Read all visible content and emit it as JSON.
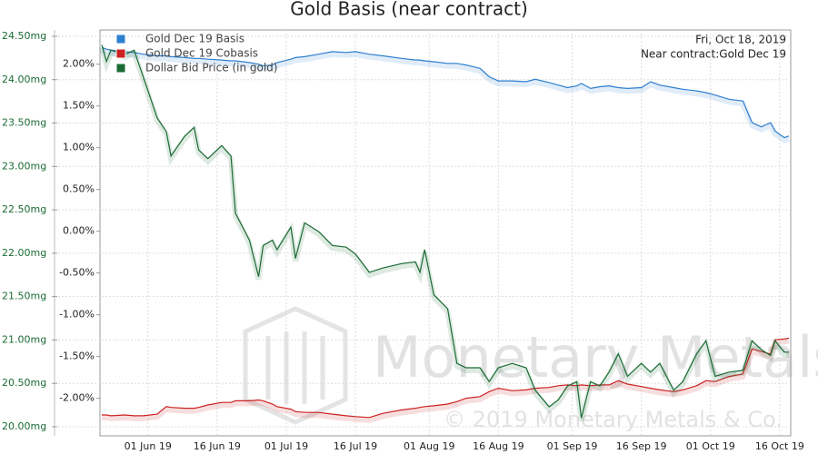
{
  "chart_data": {
    "type": "line",
    "title": "Gold Basis (near contract)",
    "annotations": [
      "Fri, Oct 18, 2019",
      "Near contract:Gold Dec 19"
    ],
    "watermark": [
      "Monetary Metals",
      "© 2019 Monetary Metals & Co."
    ],
    "legend": "upper left",
    "grid": true,
    "x": [
      "2019-05-22",
      "2019-05-23",
      "2019-05-24",
      "2019-05-27",
      "2019-05-29",
      "2019-05-31",
      "2019-06-03",
      "2019-06-05",
      "2019-06-06",
      "2019-06-09",
      "2019-06-11",
      "2019-06-12",
      "2019-06-14",
      "2019-06-17",
      "2019-06-19",
      "2019-06-20",
      "2019-06-23",
      "2019-06-25",
      "2019-06-26",
      "2019-06-28",
      "2019-06-29",
      "2019-07-02",
      "2019-07-03",
      "2019-07-05",
      "2019-07-08",
      "2019-07-11",
      "2019-07-14",
      "2019-07-16",
      "2019-07-19",
      "2019-07-22",
      "2019-07-26",
      "2019-07-29",
      "2019-07-30",
      "2019-07-31",
      "2019-08-02",
      "2019-08-05",
      "2019-08-07",
      "2019-08-09",
      "2019-08-12",
      "2019-08-14",
      "2019-08-16",
      "2019-08-19",
      "2019-08-22",
      "2019-08-24",
      "2019-08-27",
      "2019-08-29",
      "2019-08-31",
      "2019-09-02",
      "2019-09-03",
      "2019-09-05",
      "2019-09-07",
      "2019-09-09",
      "2019-09-11",
      "2019-09-13",
      "2019-09-16",
      "2019-09-18",
      "2019-09-20",
      "2019-09-23",
      "2019-09-25",
      "2019-09-28",
      "2019-09-30",
      "2019-10-02",
      "2019-10-05",
      "2019-10-08",
      "2019-10-10",
      "2019-10-12",
      "2019-10-14",
      "2019-10-15",
      "2019-10-17",
      "2019-10-18"
    ],
    "xlim": [
      "2019-05-22",
      "2019-10-18"
    ],
    "xticks": [
      {
        "value": "2019-06-01",
        "label": "01 Jun 19"
      },
      {
        "value": "2019-06-16",
        "label": "16 Jun 19"
      },
      {
        "value": "2019-07-01",
        "label": "01 Jul 19"
      },
      {
        "value": "2019-07-16",
        "label": "16 Jul 19"
      },
      {
        "value": "2019-08-01",
        "label": "01 Aug 19"
      },
      {
        "value": "2019-08-16",
        "label": "16 Aug 19"
      },
      {
        "value": "2019-09-01",
        "label": "01 Sep 19"
      },
      {
        "value": "2019-09-16",
        "label": "16 Sep 19"
      },
      {
        "value": "2019-10-01",
        "label": "01 Oct 19"
      },
      {
        "value": "2019-10-16",
        "label": "16 Oct 19"
      }
    ],
    "ylim": [
      -2.45,
      2.41
    ],
    "yticks": [
      {
        "value": 2,
        "label": "2.00%"
      },
      {
        "value": 1.5,
        "label": "1.50%"
      },
      {
        "value": 1,
        "label": "1.00%"
      },
      {
        "value": 0.5,
        "label": "0.50%"
      },
      {
        "value": 0,
        "label": "0.00%"
      },
      {
        "value": -0.5,
        "label": "-0.50%"
      },
      {
        "value": -1,
        "label": "-1.00%"
      },
      {
        "value": -1.5,
        "label": "-1.50%"
      },
      {
        "value": -2,
        "label": "-2.00%"
      }
    ],
    "y2lim": [
      19.895,
      24.573
    ],
    "y2ticks": [
      {
        "value": 24.5,
        "label": "24.50mg"
      },
      {
        "value": 24,
        "label": "24.00mg"
      },
      {
        "value": 23.5,
        "label": "23.50mg"
      },
      {
        "value": 23,
        "label": "23.00mg"
      },
      {
        "value": 22.5,
        "label": "22.50mg"
      },
      {
        "value": 22,
        "label": "22.00mg"
      },
      {
        "value": 21.5,
        "label": "21.50mg"
      },
      {
        "value": 21,
        "label": "21.00mg"
      },
      {
        "value": 20.5,
        "label": "20.50mg"
      },
      {
        "value": 20,
        "label": "20.00mg"
      }
    ],
    "series": [
      {
        "name": "Gold Dec 19 Basis",
        "color": "#2e7fd0",
        "values": [
          2.2,
          2.18,
          2.17,
          2.15,
          2.14,
          2.12,
          2.1,
          2.1,
          2.09,
          2.08,
          2.07,
          2.07,
          2.06,
          2.05,
          2.04,
          2.04,
          2.02,
          2.0,
          1.98,
          1.99,
          2.02,
          2.06,
          2.08,
          2.09,
          2.12,
          2.15,
          2.14,
          2.15,
          2.12,
          2.1,
          2.07,
          2.05,
          2.05,
          2.04,
          2.03,
          2.01,
          2.01,
          1.99,
          1.95,
          1.85,
          1.8,
          1.8,
          1.79,
          1.82,
          1.78,
          1.75,
          1.72,
          1.74,
          1.77,
          1.71,
          1.73,
          1.74,
          1.72,
          1.71,
          1.72,
          1.79,
          1.75,
          1.72,
          1.7,
          1.68,
          1.66,
          1.63,
          1.58,
          1.56,
          1.3,
          1.25,
          1.3,
          1.2,
          1.12,
          1.14
        ]
      },
      {
        "name": "Gold Dec 19 Cobasis",
        "color": "#cc2222",
        "values": [
          -2.2,
          -2.2,
          -2.21,
          -2.2,
          -2.21,
          -2.21,
          -2.19,
          -2.1,
          -2.11,
          -2.12,
          -2.12,
          -2.11,
          -2.08,
          -2.05,
          -2.05,
          -2.03,
          -2.03,
          -2.02,
          -2.03,
          -2.07,
          -2.1,
          -2.13,
          -2.16,
          -2.17,
          -2.17,
          -2.19,
          -2.21,
          -2.22,
          -2.23,
          -2.18,
          -2.14,
          -2.12,
          -2.11,
          -2.1,
          -2.09,
          -2.07,
          -2.04,
          -2.0,
          -1.98,
          -1.92,
          -1.88,
          -1.91,
          -1.9,
          -1.88,
          -1.87,
          -1.85,
          -1.84,
          -1.85,
          -1.84,
          -1.85,
          -1.84,
          -1.84,
          -1.79,
          -1.83,
          -1.86,
          -1.88,
          -1.9,
          -1.92,
          -1.9,
          -1.85,
          -1.79,
          -1.8,
          -1.74,
          -1.71,
          -1.41,
          -1.44,
          -1.47,
          -1.3,
          -1.29,
          -1.28
        ]
      },
      {
        "name": "Dollar Bid Price (in gold)",
        "color": "#1a6b34",
        "axis": "y2",
        "values": [
          24.4,
          24.21,
          24.34,
          24.29,
          24.34,
          24.03,
          23.56,
          23.4,
          23.12,
          23.35,
          23.45,
          23.19,
          23.09,
          23.24,
          23.12,
          22.46,
          22.15,
          21.73,
          22.09,
          22.15,
          22.04,
          22.3,
          21.94,
          22.35,
          22.25,
          22.09,
          22.07,
          21.99,
          21.78,
          21.83,
          21.88,
          21.9,
          21.78,
          22.04,
          21.52,
          21.36,
          20.73,
          20.68,
          20.68,
          20.52,
          20.68,
          20.73,
          20.68,
          20.42,
          20.23,
          20.31,
          20.47,
          20.52,
          20.1,
          20.52,
          20.47,
          20.63,
          20.84,
          20.58,
          20.73,
          20.63,
          20.73,
          20.42,
          20.52,
          20.84,
          20.99,
          20.58,
          20.63,
          20.65,
          20.99,
          20.89,
          20.82,
          20.99,
          20.86,
          20.86
        ]
      }
    ]
  }
}
